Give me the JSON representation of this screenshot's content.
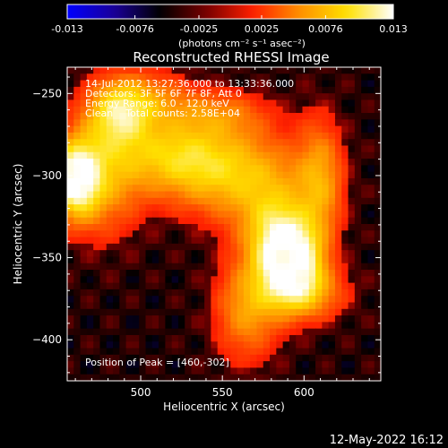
{
  "chart_data": {
    "type": "heatmap",
    "title": "Reconstructed RHESSI Image",
    "xlabel": "Heliocentric X (arcsec)",
    "ylabel": "Heliocentric Y (arcsec)",
    "xlim": [
      455,
      647
    ],
    "ylim": [
      -425,
      -234
    ],
    "x_ticks": [
      500,
      550,
      600
    ],
    "y_ticks": [
      -250,
      -300,
      -350,
      -400
    ],
    "colorbar": {
      "min": -0.013,
      "max": 0.013,
      "tick_values": [
        -0.013,
        -0.0076,
        -0.0025,
        0.0025,
        0.0076,
        0.013
      ],
      "tick_labels": [
        "-0.013",
        "-0.0076",
        "-0.0025",
        "0.0025",
        "0.0076",
        "0.013"
      ],
      "units_label": "(photons cm⁻² s⁻¹ asec⁻²)",
      "colormap": [
        "#0000ff",
        "#1a0099",
        "#000000",
        "#7a0000",
        "#ff2000",
        "#ff9000",
        "#ffe000",
        "#ffffff"
      ]
    },
    "annotations": [
      "14-Jul-2012 13:27:36.000 to 13:33:36.000",
      "Detectors: 3F 5F 6F 7F 8F, Att 0",
      "Energy Range: 6.0 - 12.0 keV",
      "Clean    Total counts: 2.58E+04"
    ],
    "peak_label": "Position of Peak = [460,-302]",
    "peak_position": [
      460,
      -302
    ],
    "sources": [
      {
        "x": 460,
        "y": -302,
        "amp": 1.0,
        "sx": 10,
        "sy": 16
      },
      {
        "x": 593,
        "y": -352,
        "amp": 0.95,
        "sx": 12,
        "sy": 16
      },
      {
        "x": 582,
        "y": -337,
        "amp": 0.6,
        "sx": 14,
        "sy": 20
      },
      {
        "x": 560,
        "y": -300,
        "amp": 0.55,
        "sx": 28,
        "sy": 20
      },
      {
        "x": 520,
        "y": -288,
        "amp": 0.55,
        "sx": 24,
        "sy": 16
      },
      {
        "x": 487,
        "y": -262,
        "amp": 0.6,
        "sx": 14,
        "sy": 14
      },
      {
        "x": 478,
        "y": -300,
        "amp": 0.45,
        "sx": 16,
        "sy": 26
      },
      {
        "x": 610,
        "y": -305,
        "amp": 0.45,
        "sx": 10,
        "sy": 28
      },
      {
        "x": 565,
        "y": -382,
        "amp": 0.45,
        "sx": 14,
        "sy": 22
      },
      {
        "x": 600,
        "y": -372,
        "amp": 0.45,
        "sx": 18,
        "sy": 12
      },
      {
        "x": 548,
        "y": -262,
        "amp": 0.3,
        "sx": 22,
        "sy": 10
      },
      {
        "x": 505,
        "y": -252,
        "amp": 0.3,
        "sx": 20,
        "sy": 12
      }
    ],
    "background_level": -0.35,
    "timestamp": "12-May-2022 16:12"
  }
}
